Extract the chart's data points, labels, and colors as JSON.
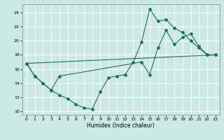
{
  "xlabel": "Humidex (Indice chaleur)",
  "bg_color": "#cceae4",
  "grid_color": "#ffffff",
  "line_color": "#1a7068",
  "xlim": [
    -0.5,
    23.5
  ],
  "ylim": [
    9.5,
    25.2
  ],
  "yticks": [
    10,
    12,
    14,
    16,
    18,
    20,
    22,
    24
  ],
  "xticks": [
    0,
    1,
    2,
    3,
    4,
    5,
    6,
    7,
    8,
    9,
    10,
    11,
    12,
    13,
    14,
    15,
    16,
    17,
    18,
    19,
    20,
    21,
    22,
    23
  ],
  "series1": {
    "x": [
      0,
      1,
      2,
      3,
      4,
      5,
      6,
      7,
      8,
      9,
      10,
      11,
      12,
      13,
      14,
      15,
      16,
      17,
      18,
      19,
      20,
      21,
      22,
      23
    ],
    "y": [
      16.8,
      15.0,
      14.0,
      13.0,
      12.3,
      11.8,
      11.0,
      10.5,
      10.3,
      12.8,
      14.8,
      15.0,
      15.2,
      17.0,
      19.8,
      24.5,
      22.8,
      23.0,
      21.8,
      21.2,
      20.0,
      19.0,
      18.0,
      18.0
    ]
  },
  "series2": {
    "x": [
      0,
      1,
      2,
      3,
      4,
      14,
      15,
      16,
      17,
      18,
      19,
      20,
      21,
      22,
      23
    ],
    "y": [
      16.8,
      15.0,
      14.0,
      13.0,
      15.0,
      17.0,
      15.2,
      19.0,
      21.5,
      19.5,
      20.5,
      21.0,
      19.2,
      18.0,
      18.0
    ]
  },
  "series3": {
    "x": [
      0,
      23
    ],
    "y": [
      16.8,
      18.0
    ]
  }
}
